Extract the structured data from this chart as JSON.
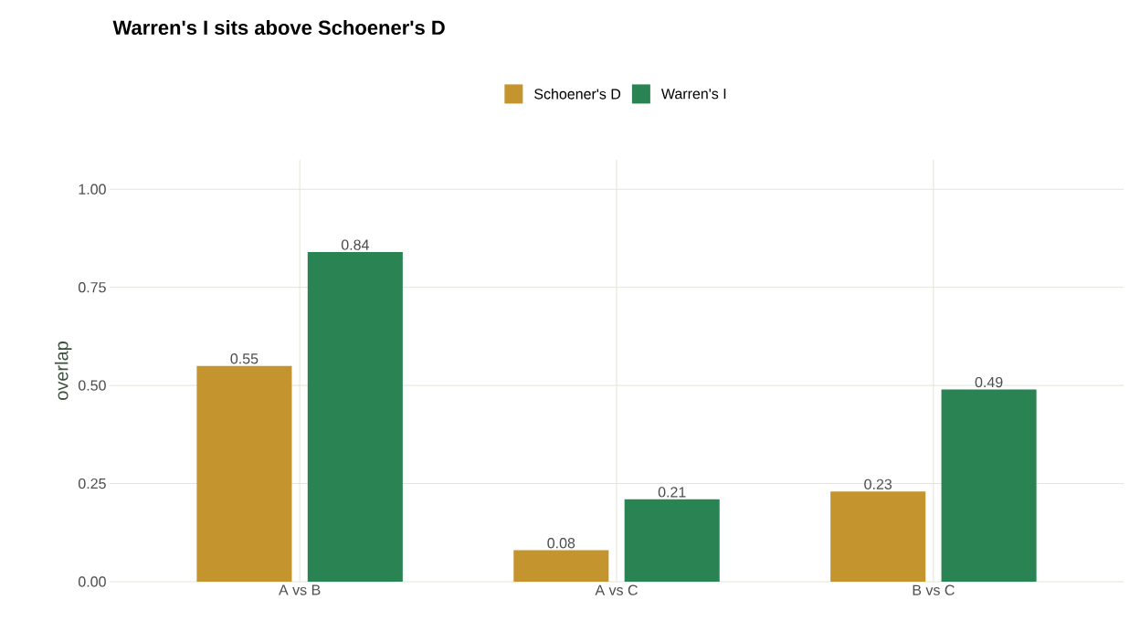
{
  "chart_data": {
    "type": "bar",
    "title": "Warren's I sits above Schoener's D",
    "ylabel": "overlap",
    "categories": [
      "A vs B",
      "A vs C",
      "B vs C"
    ],
    "series": [
      {
        "name": "Schoener's D",
        "color": "#c4942f",
        "values": [
          0.55,
          0.08,
          0.23
        ]
      },
      {
        "name": "Warren's I",
        "color": "#2a8352",
        "values": [
          0.84,
          0.21,
          0.49
        ]
      }
    ],
    "ylim": [
      0,
      1.075
    ],
    "yticks": [
      {
        "value": 0,
        "label": "0.00"
      },
      {
        "value": 0.25,
        "label": "0.25"
      },
      {
        "value": 0.5,
        "label": "0.50"
      },
      {
        "value": 0.75,
        "label": "0.75"
      },
      {
        "value": 1,
        "label": "1.00"
      }
    ],
    "grid": true,
    "legend": "top",
    "data_labels": true
  }
}
